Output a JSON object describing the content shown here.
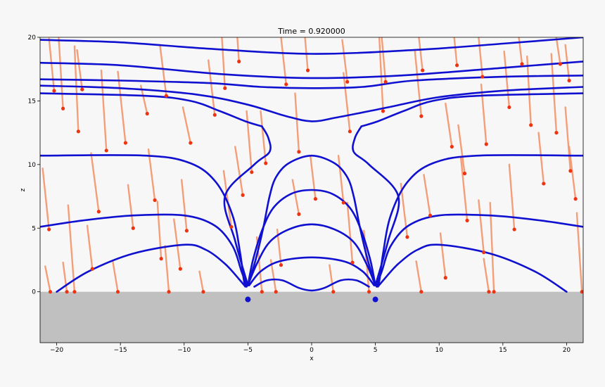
{
  "chart_data": {
    "type": "line",
    "title": "Time = 0.920000",
    "xlabel": "x",
    "ylabel": "z",
    "xlim": [
      -21.3,
      21.3
    ],
    "ylim": [
      -4,
      20
    ],
    "x_ticks": [
      -20,
      -15,
      -10,
      -5,
      0,
      5,
      10,
      15,
      20
    ],
    "x_tick_labels": [
      "−20",
      "−15",
      "−10",
      "−5",
      "0",
      "5",
      "10",
      "15",
      "20"
    ],
    "y_ticks": [
      0,
      5,
      10,
      15,
      20
    ],
    "y_tick_labels": [
      "0",
      "5",
      "10",
      "15",
      "20"
    ],
    "grid": false,
    "legend": "none",
    "colors": {
      "background": "#f7f7f7",
      "ground": "#c0c0c0",
      "field_lines": "#1010d0",
      "tracers": "#f4956c",
      "tracer_heads": "#ee3311",
      "charges": "#1010d0"
    },
    "ground": {
      "z_top": 0,
      "z_bottom": -4
    },
    "charges": [
      {
        "x": -5,
        "z": -0.6
      },
      {
        "x": 5,
        "z": -0.6
      }
    ],
    "field_lines": [
      {
        "points": [
          [
            -21.3,
            19.8
          ],
          [
            -15,
            19.6
          ],
          [
            -8,
            19.1
          ],
          [
            0,
            18.7
          ],
          [
            8,
            19.0
          ],
          [
            15,
            19.5
          ],
          [
            21.3,
            20.0
          ]
        ]
      },
      {
        "points": [
          [
            -21.3,
            18.0
          ],
          [
            -15,
            17.8
          ],
          [
            -7,
            17.1
          ],
          [
            0,
            16.8
          ],
          [
            7,
            17.0
          ],
          [
            15,
            17.6
          ],
          [
            21.3,
            18.1
          ]
        ]
      },
      {
        "points": [
          [
            -21.3,
            16.7
          ],
          [
            -15,
            16.6
          ],
          [
            -8,
            16.4
          ],
          [
            -4,
            16.1
          ],
          [
            0,
            16.0
          ],
          [
            4,
            16.1
          ],
          [
            8,
            16.6
          ],
          [
            15,
            16.9
          ],
          [
            21.3,
            17.0
          ]
        ]
      },
      {
        "points": [
          [
            -21.3,
            16.2
          ],
          [
            -15,
            16.0
          ],
          [
            -9,
            15.5
          ],
          [
            -5,
            14.7
          ],
          [
            -2,
            13.8
          ],
          [
            0,
            13.4
          ],
          [
            2,
            13.7
          ],
          [
            6,
            14.5
          ],
          [
            10,
            15.3
          ],
          [
            15,
            15.8
          ],
          [
            21.3,
            16.1
          ]
        ]
      },
      {
        "points": [
          [
            -21.3,
            10.7
          ],
          [
            -13,
            10.7
          ],
          [
            -9.5,
            10.1
          ],
          [
            -7.5,
            8.6
          ],
          [
            -6.2,
            6.0
          ],
          [
            -5.6,
            3.0
          ],
          [
            -5.3,
            0.8
          ],
          [
            -5.1,
            0.4
          ]
        ]
      },
      {
        "points": [
          [
            5.1,
            0.4
          ],
          [
            5.3,
            0.8
          ],
          [
            5.6,
            3.0
          ],
          [
            6.2,
            6.0
          ],
          [
            7.5,
            8.6
          ],
          [
            9.5,
            10.1
          ],
          [
            13,
            10.7
          ],
          [
            21.3,
            10.7
          ]
        ]
      },
      {
        "points": [
          [
            -21.3,
            5.1
          ],
          [
            -18,
            5.6
          ],
          [
            -14,
            6.0
          ],
          [
            -10,
            6.0
          ],
          [
            -7.6,
            5.2
          ],
          [
            -6.2,
            3.6
          ],
          [
            -5.5,
            1.6
          ],
          [
            -5.1,
            0.5
          ]
        ]
      },
      {
        "points": [
          [
            5.1,
            0.5
          ],
          [
            5.5,
            1.6
          ],
          [
            6.2,
            3.6
          ],
          [
            7.6,
            5.2
          ],
          [
            10,
            6.0
          ],
          [
            14,
            6.0
          ],
          [
            18,
            5.6
          ],
          [
            21.3,
            5.1
          ]
        ]
      },
      {
        "points": [
          [
            -20,
            0.0
          ],
          [
            -17.5,
            1.6
          ],
          [
            -14,
            3.0
          ],
          [
            -10,
            3.7
          ],
          [
            -8.3,
            3.3
          ],
          [
            -6.8,
            2.2
          ],
          [
            -5.7,
            1.0
          ],
          [
            -5.2,
            0.4
          ]
        ]
      },
      {
        "points": [
          [
            5.2,
            0.4
          ],
          [
            5.7,
            1.0
          ],
          [
            6.8,
            2.2
          ],
          [
            8.3,
            3.3
          ],
          [
            10,
            3.7
          ],
          [
            14,
            3.0
          ],
          [
            17.5,
            1.6
          ],
          [
            20,
            0.0
          ]
        ]
      },
      {
        "points": [
          [
            -5.0,
            0.5
          ],
          [
            -4.4,
            2.5
          ],
          [
            -3.8,
            5.0
          ],
          [
            -3.3,
            7.5
          ],
          [
            -2.8,
            9.0
          ],
          [
            -1.8,
            10.1
          ],
          [
            0,
            10.7
          ],
          [
            1.8,
            10.1
          ],
          [
            2.8,
            9.0
          ],
          [
            3.3,
            7.5
          ],
          [
            3.8,
            5.0
          ],
          [
            4.4,
            2.5
          ],
          [
            5.0,
            0.5
          ]
        ]
      },
      {
        "points": [
          [
            -5.0,
            0.5
          ],
          [
            -4.6,
            2.5
          ],
          [
            -3.9,
            4.8
          ],
          [
            -3.0,
            6.6
          ],
          [
            -1.6,
            7.7
          ],
          [
            0,
            8.0
          ],
          [
            1.6,
            7.7
          ],
          [
            3.0,
            6.6
          ],
          [
            3.9,
            4.8
          ],
          [
            4.6,
            2.5
          ],
          [
            5.0,
            0.5
          ]
        ]
      },
      {
        "points": [
          [
            -5.0,
            0.5
          ],
          [
            -4.3,
            2.2
          ],
          [
            -3.3,
            3.9
          ],
          [
            -1.8,
            4.9
          ],
          [
            0,
            5.3
          ],
          [
            1.8,
            4.9
          ],
          [
            3.3,
            3.9
          ],
          [
            4.3,
            2.2
          ],
          [
            5.0,
            0.5
          ]
        ]
      },
      {
        "points": [
          [
            -4.9,
            0.5
          ],
          [
            -4.0,
            1.6
          ],
          [
            -2.5,
            2.4
          ],
          [
            0,
            2.7
          ],
          [
            2.5,
            2.4
          ],
          [
            4.0,
            1.6
          ],
          [
            4.9,
            0.5
          ]
        ]
      },
      {
        "points": [
          [
            -4.5,
            0.4
          ],
          [
            -3.5,
            0.9
          ],
          [
            -2.3,
            0.9
          ],
          [
            -1.0,
            0.3
          ],
          [
            0,
            0.1
          ],
          [
            1.0,
            0.3
          ],
          [
            2.3,
            0.9
          ],
          [
            3.5,
            0.9
          ],
          [
            4.5,
            0.4
          ]
        ]
      },
      {
        "points": [
          [
            -5.0,
            0.5
          ],
          [
            -6.0,
            4.0
          ],
          [
            -6.8,
            7.5
          ],
          [
            -4.5,
            10.0
          ],
          [
            -3.3,
            11.0
          ],
          [
            -3.4,
            12.1
          ],
          [
            -3.9,
            13.0
          ]
        ]
      },
      {
        "points": [
          [
            -3.9,
            13.0
          ],
          [
            -5.2,
            13.4
          ],
          [
            -7.2,
            14.2
          ],
          [
            -9.5,
            15.0
          ],
          [
            -13,
            15.4
          ],
          [
            -21.3,
            15.6
          ]
        ]
      },
      {
        "points": [
          [
            5.0,
            0.5
          ],
          [
            6.0,
            4.0
          ],
          [
            6.8,
            7.5
          ],
          [
            4.5,
            10.0
          ],
          [
            3.3,
            11.0
          ],
          [
            3.4,
            12.1
          ],
          [
            3.9,
            13.0
          ]
        ]
      },
      {
        "points": [
          [
            3.9,
            13.0
          ],
          [
            5.2,
            13.4
          ],
          [
            7.2,
            14.2
          ],
          [
            9.5,
            15.0
          ],
          [
            13,
            15.4
          ],
          [
            21.3,
            15.6
          ]
        ]
      }
    ],
    "tracers": [
      {
        "x": -20.5,
        "z": 0.0,
        "dx": -0.4,
        "dz": 2.0
      },
      {
        "x": -19.2,
        "z": 0.0,
        "dx": -0.3,
        "dz": 2.3
      },
      {
        "x": -18.6,
        "z": 0.0,
        "dx": -0.5,
        "dz": 6.8
      },
      {
        "x": -15.2,
        "z": 0.0,
        "dx": -0.4,
        "dz": 2.4
      },
      {
        "x": -11.2,
        "z": 0.0,
        "dx": -0.3,
        "dz": 3.6
      },
      {
        "x": -8.5,
        "z": 0.0,
        "dx": -0.3,
        "dz": 1.6
      },
      {
        "x": -2.8,
        "z": 0.0,
        "dx": -0.4,
        "dz": 2.5
      },
      {
        "x": 1.7,
        "z": 0.0,
        "dx": -0.3,
        "dz": 2.1
      },
      {
        "x": 8.6,
        "z": 0.0,
        "dx": -0.4,
        "dz": 2.4
      },
      {
        "x": 13.9,
        "z": 0.0,
        "dx": -0.4,
        "dz": 2.6
      },
      {
        "x": 14.3,
        "z": 0.0,
        "dx": -0.3,
        "dz": 7.0
      },
      {
        "x": 21.2,
        "z": 0.0,
        "dx": -0.4,
        "dz": 6.2
      },
      {
        "x": -20.6,
        "z": 4.9,
        "dx": -0.5,
        "dz": 4.8
      },
      {
        "x": -16.7,
        "z": 6.3,
        "dx": -0.6,
        "dz": 4.6
      },
      {
        "x": -17.2,
        "z": 1.8,
        "dx": -0.4,
        "dz": 3.4
      },
      {
        "x": -14.0,
        "z": 5.0,
        "dx": -0.4,
        "dz": 3.4
      },
      {
        "x": -12.3,
        "z": 7.2,
        "dx": -0.5,
        "dz": 4.0
      },
      {
        "x": -9.8,
        "z": 4.8,
        "dx": -0.4,
        "dz": 4.0
      },
      {
        "x": -11.8,
        "z": 2.6,
        "dx": -0.3,
        "dz": 4.5
      },
      {
        "x": -10.3,
        "z": 1.8,
        "dx": -0.5,
        "dz": 3.9
      },
      {
        "x": -6.3,
        "z": 5.1,
        "dx": -0.6,
        "dz": 4.4
      },
      {
        "x": -9.5,
        "z": 11.7,
        "dx": -0.6,
        "dz": 2.8
      },
      {
        "x": -12.9,
        "z": 14.0,
        "dx": -0.5,
        "dz": 2.2
      },
      {
        "x": -11.4,
        "z": 15.4,
        "dx": -0.5,
        "dz": 4.0
      },
      {
        "x": -14.6,
        "z": 11.7,
        "dx": -0.6,
        "dz": 5.6
      },
      {
        "x": -16.1,
        "z": 11.1,
        "dx": -0.4,
        "dz": 6.3
      },
      {
        "x": -18.3,
        "z": 12.6,
        "dx": -0.3,
        "dz": 6.7
      },
      {
        "x": -20.2,
        "z": 15.8,
        "dx": -0.4,
        "dz": 4.1
      },
      {
        "x": -19.5,
        "z": 14.4,
        "dx": -0.4,
        "dz": 6.5
      },
      {
        "x": -18.0,
        "z": 15.9,
        "dx": -0.4,
        "dz": 3.1
      },
      {
        "x": -7.6,
        "z": 13.9,
        "dx": -0.5,
        "dz": 4.3
      },
      {
        "x": -5.7,
        "z": 18.1,
        "dx": -0.3,
        "dz": 4.4
      },
      {
        "x": -6.8,
        "z": 16.0,
        "dx": -0.3,
        "dz": 5.0
      },
      {
        "x": -2.0,
        "z": 16.3,
        "dx": -0.4,
        "dz": 3.7
      },
      {
        "x": -0.3,
        "z": 17.4,
        "dx": -0.3,
        "dz": 3.5
      },
      {
        "x": -1.0,
        "z": 11.0,
        "dx": -0.3,
        "dz": 4.6
      },
      {
        "x": -3.6,
        "z": 10.1,
        "dx": -0.4,
        "dz": 4.1
      },
      {
        "x": -4.7,
        "z": 9.4,
        "dx": -0.4,
        "dz": 4.8
      },
      {
        "x": -5.4,
        "z": 7.6,
        "dx": -0.6,
        "dz": 3.8
      },
      {
        "x": -1.0,
        "z": 6.1,
        "dx": -0.5,
        "dz": 2.7
      },
      {
        "x": -2.4,
        "z": 2.1,
        "dx": -0.3,
        "dz": 2.8
      },
      {
        "x": 0.3,
        "z": 7.3,
        "dx": -0.4,
        "dz": 3.4
      },
      {
        "x": 2.5,
        "z": 7.0,
        "dx": -0.4,
        "dz": 3.7
      },
      {
        "x": 3.0,
        "z": 12.6,
        "dx": -0.5,
        "dz": 4.6
      },
      {
        "x": 2.8,
        "z": 16.5,
        "dx": -0.4,
        "dz": 3.3
      },
      {
        "x": 5.8,
        "z": 16.5,
        "dx": -0.3,
        "dz": 3.5
      },
      {
        "x": 8.7,
        "z": 17.4,
        "dx": -0.3,
        "dz": 2.7
      },
      {
        "x": 11.4,
        "z": 17.8,
        "dx": -0.3,
        "dz": 3.0
      },
      {
        "x": 13.4,
        "z": 16.9,
        "dx": -0.3,
        "dz": 3.1
      },
      {
        "x": 16.5,
        "z": 17.9,
        "dx": -0.4,
        "dz": 3.4
      },
      {
        "x": 19.5,
        "z": 17.9,
        "dx": -0.4,
        "dz": 2.7
      },
      {
        "x": 20.2,
        "z": 16.6,
        "dx": -0.3,
        "dz": 2.8
      },
      {
        "x": 5.6,
        "z": 14.2,
        "dx": -0.3,
        "dz": 5.9
      },
      {
        "x": 8.6,
        "z": 13.8,
        "dx": -0.5,
        "dz": 5.1
      },
      {
        "x": 11.0,
        "z": 11.4,
        "dx": -0.5,
        "dz": 3.4
      },
      {
        "x": 12.0,
        "z": 9.3,
        "dx": -0.5,
        "dz": 3.8
      },
      {
        "x": 9.3,
        "z": 6.0,
        "dx": -0.5,
        "dz": 3.2
      },
      {
        "x": 12.2,
        "z": 5.6,
        "dx": -0.5,
        "dz": 5.0
      },
      {
        "x": 15.9,
        "z": 4.9,
        "dx": -0.4,
        "dz": 5.1
      },
      {
        "x": 18.2,
        "z": 8.5,
        "dx": -0.4,
        "dz": 4.0
      },
      {
        "x": 20.3,
        "z": 9.5,
        "dx": -0.4,
        "dz": 5.0
      },
      {
        "x": 20.7,
        "z": 7.3,
        "dx": -0.5,
        "dz": 4.1
      },
      {
        "x": 15.5,
        "z": 14.5,
        "dx": -0.4,
        "dz": 4.4
      },
      {
        "x": 19.2,
        "z": 12.5,
        "dx": -0.4,
        "dz": 6.2
      },
      {
        "x": 17.2,
        "z": 13.1,
        "dx": -0.3,
        "dz": 5.4
      },
      {
        "x": 13.7,
        "z": 11.6,
        "dx": -0.4,
        "dz": 4.7
      },
      {
        "x": 7.5,
        "z": 4.3,
        "dx": -0.5,
        "dz": 4.2
      },
      {
        "x": 3.2,
        "z": 2.3,
        "dx": -0.4,
        "dz": 4.7
      },
      {
        "x": 13.5,
        "z": 3.1,
        "dx": -0.4,
        "dz": 4.1
      },
      {
        "x": 10.5,
        "z": 1.1,
        "dx": -0.4,
        "dz": 3.5
      },
      {
        "x": 4.5,
        "z": 0.0,
        "dx": -0.4,
        "dz": 4.8
      },
      {
        "x": -3.9,
        "z": 0.0,
        "dx": -0.4,
        "dz": 4.3
      }
    ]
  }
}
